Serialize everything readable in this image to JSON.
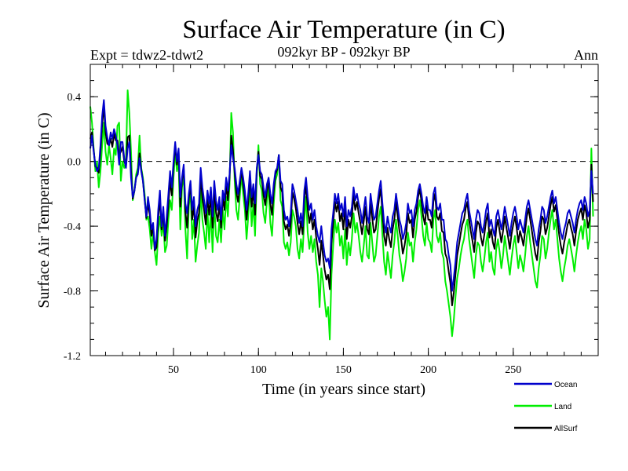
{
  "chart_data": {
    "type": "line",
    "title": "Surface Air Temperature (in C)",
    "subtitle": "092kyr BP - 092kyr BP",
    "experiment_label": "Expt = tdwz2-tdwt2",
    "season_label": "Ann",
    "xlabel": "Time (in years since start)",
    "ylabel": "Surface Air Temperature (in C)",
    "xlim": [
      1,
      300
    ],
    "ylim": [
      -1.2,
      0.6
    ],
    "x_ticks": [
      50,
      100,
      150,
      200,
      250
    ],
    "x_tick_labels": [
      "50",
      "100",
      "150",
      "200",
      "250"
    ],
    "y_ticks": [
      -1.2,
      -0.8,
      -0.4,
      0.0,
      0.4
    ],
    "y_tick_labels": [
      "-1.2",
      "-0.8",
      "-0.4",
      "0.0",
      "0.4"
    ],
    "reference_line": 0.0,
    "legend_position": "bottom-right",
    "x_start": 1,
    "x_step": 1,
    "series": [
      {
        "name": "Ocean",
        "color": "#0000cc",
        "values": [
          0.08,
          0.16,
          0.06,
          -0.02,
          -0.06,
          -0.04,
          0.1,
          0.28,
          0.38,
          0.22,
          0.15,
          0.1,
          0.18,
          0.14,
          0.2,
          0.16,
          0.1,
          -0.02,
          0.12,
          0.12,
          0.02,
          -0.04,
          0.08,
          0.12,
          -0.1,
          -0.22,
          -0.18,
          -0.1,
          -0.08,
          0.02,
          -0.06,
          -0.12,
          -0.24,
          -0.34,
          -0.22,
          -0.3,
          -0.42,
          -0.38,
          -0.54,
          -0.48,
          -0.3,
          -0.18,
          -0.4,
          -0.28,
          -0.46,
          -0.34,
          -0.2,
          -0.06,
          -0.16,
          0.0,
          0.12,
          0.0,
          0.08,
          -0.22,
          -0.1,
          -0.02,
          -0.26,
          -0.32,
          -0.2,
          -0.12,
          -0.3,
          -0.22,
          -0.4,
          -0.3,
          -0.26,
          -0.04,
          -0.16,
          -0.24,
          -0.32,
          -0.18,
          -0.26,
          -0.16,
          -0.34,
          -0.12,
          -0.24,
          -0.3,
          -0.22,
          -0.36,
          -0.18,
          -0.24,
          -0.1,
          -0.18,
          -0.08,
          0.1,
          0.02,
          -0.04,
          -0.14,
          -0.2,
          -0.12,
          -0.04,
          -0.1,
          -0.18,
          -0.3,
          -0.2,
          -0.06,
          -0.22,
          -0.14,
          -0.26,
          -0.04,
          0.04,
          -0.06,
          -0.08,
          -0.16,
          -0.22,
          -0.14,
          -0.1,
          -0.2,
          -0.26,
          -0.14,
          -0.06,
          -0.04,
          0.04,
          -0.12,
          -0.14,
          -0.3,
          -0.36,
          -0.34,
          -0.4,
          -0.32,
          -0.14,
          -0.18,
          -0.24,
          -0.3,
          -0.38,
          -0.32,
          -0.4,
          -0.18,
          -0.1,
          -0.22,
          -0.3,
          -0.26,
          -0.36,
          -0.3,
          -0.4,
          -0.46,
          -0.5,
          -0.4,
          -0.5,
          -0.58,
          -0.62,
          -0.6,
          -0.66,
          -0.42,
          -0.32,
          -0.2,
          -0.26,
          -0.2,
          -0.3,
          -0.26,
          -0.34,
          -0.22,
          -0.4,
          -0.3,
          -0.34,
          -0.28,
          -0.16,
          -0.24,
          -0.2,
          -0.26,
          -0.3,
          -0.38,
          -0.3,
          -0.22,
          -0.34,
          -0.38,
          -0.2,
          -0.28,
          -0.36,
          -0.34,
          -0.26,
          -0.18,
          -0.12,
          -0.26,
          -0.38,
          -0.44,
          -0.34,
          -0.4,
          -0.44,
          -0.34,
          -0.3,
          -0.2,
          -0.28,
          -0.36,
          -0.4,
          -0.48,
          -0.44,
          -0.38,
          -0.26,
          -0.32,
          -0.3,
          -0.4,
          -0.3,
          -0.26,
          -0.18,
          -0.14,
          -0.2,
          -0.28,
          -0.32,
          -0.22,
          -0.3,
          -0.3,
          -0.34,
          -0.2,
          -0.16,
          -0.28,
          -0.3,
          -0.26,
          -0.36,
          -0.36,
          -0.48,
          -0.5,
          -0.58,
          -0.64,
          -0.8,
          -0.72,
          -0.62,
          -0.5,
          -0.44,
          -0.38,
          -0.32,
          -0.3,
          -0.24,
          -0.2,
          -0.3,
          -0.36,
          -0.42,
          -0.48,
          -0.36,
          -0.3,
          -0.32,
          -0.4,
          -0.44,
          -0.38,
          -0.3,
          -0.26,
          -0.4,
          -0.36,
          -0.42,
          -0.46,
          -0.34,
          -0.3,
          -0.36,
          -0.42,
          -0.36,
          -0.28,
          -0.34,
          -0.4,
          -0.46,
          -0.38,
          -0.32,
          -0.28,
          -0.34,
          -0.42,
          -0.36,
          -0.4,
          -0.44,
          -0.36,
          -0.28,
          -0.24,
          -0.3,
          -0.36,
          -0.42,
          -0.48,
          -0.52,
          -0.42,
          -0.36,
          -0.28,
          -0.3,
          -0.38,
          -0.34,
          -0.28,
          -0.22,
          -0.18,
          -0.26,
          -0.22,
          -0.3,
          -0.38,
          -0.44,
          -0.48,
          -0.42,
          -0.38,
          -0.32,
          -0.3,
          -0.34,
          -0.38,
          -0.44,
          -0.36,
          -0.3,
          -0.26,
          -0.24,
          -0.3,
          -0.22,
          -0.26,
          -0.34,
          -0.3,
          -0.06,
          -0.2
        ]
      },
      {
        "name": "Land",
        "color": "#00ee00",
        "values": [
          0.34,
          0.24,
          0.08,
          -0.06,
          0.0,
          -0.16,
          -0.06,
          0.1,
          0.24,
          0.06,
          -0.02,
          0.1,
          0.02,
          -0.08,
          0.08,
          0.04,
          0.22,
          0.24,
          -0.12,
          0.0,
          -0.04,
          0.0,
          0.44,
          0.3,
          0.06,
          -0.24,
          -0.18,
          -0.08,
          -0.04,
          0.16,
          -0.04,
          -0.1,
          -0.2,
          -0.36,
          -0.34,
          -0.42,
          -0.54,
          -0.44,
          -0.56,
          -0.64,
          -0.44,
          -0.34,
          -0.46,
          -0.38,
          -0.56,
          -0.52,
          -0.36,
          -0.24,
          -0.3,
          -0.1,
          0.06,
          -0.06,
          0.0,
          -0.42,
          -0.16,
          -0.08,
          -0.42,
          -0.6,
          -0.28,
          -0.18,
          -0.48,
          -0.36,
          -0.62,
          -0.52,
          -0.44,
          -0.18,
          -0.36,
          -0.44,
          -0.54,
          -0.3,
          -0.5,
          -0.3,
          -0.56,
          -0.26,
          -0.46,
          -0.5,
          -0.36,
          -0.5,
          -0.3,
          -0.42,
          -0.22,
          -0.34,
          -0.14,
          0.3,
          0.18,
          -0.12,
          -0.3,
          -0.36,
          -0.22,
          -0.08,
          -0.2,
          -0.3,
          -0.48,
          -0.34,
          -0.14,
          -0.4,
          -0.26,
          -0.46,
          -0.1,
          0.1,
          -0.14,
          -0.18,
          -0.32,
          -0.38,
          -0.24,
          -0.16,
          -0.38,
          -0.46,
          -0.26,
          -0.12,
          -0.08,
          0.04,
          -0.24,
          -0.28,
          -0.5,
          -0.54,
          -0.5,
          -0.58,
          -0.5,
          -0.3,
          -0.34,
          -0.4,
          -0.54,
          -0.6,
          -0.48,
          -0.56,
          -0.36,
          -0.22,
          -0.44,
          -0.54,
          -0.46,
          -0.56,
          -0.48,
          -0.62,
          -0.7,
          -0.9,
          -0.66,
          -0.74,
          -0.86,
          -0.96,
          -0.9,
          -1.1,
          -0.7,
          -0.52,
          -0.36,
          -0.44,
          -0.38,
          -0.52,
          -0.46,
          -0.6,
          -0.42,
          -0.64,
          -0.5,
          -0.58,
          -0.48,
          -0.32,
          -0.44,
          -0.38,
          -0.46,
          -0.56,
          -0.62,
          -0.52,
          -0.4,
          -0.58,
          -0.6,
          -0.38,
          -0.5,
          -0.62,
          -0.58,
          -0.46,
          -0.34,
          -0.28,
          -0.46,
          -0.62,
          -0.7,
          -0.56,
          -0.64,
          -0.72,
          -0.58,
          -0.5,
          -0.36,
          -0.46,
          -0.58,
          -0.64,
          -0.74,
          -0.68,
          -0.6,
          -0.44,
          -0.52,
          -0.5,
          -0.62,
          -0.5,
          -0.42,
          -0.3,
          -0.24,
          -0.34,
          -0.46,
          -0.52,
          -0.38,
          -0.48,
          -0.5,
          -0.56,
          -0.36,
          -0.3,
          -0.46,
          -0.5,
          -0.44,
          -0.56,
          -0.6,
          -0.74,
          -0.8,
          -0.88,
          -0.96,
          -1.08,
          -0.98,
          -0.84,
          -0.72,
          -0.66,
          -0.58,
          -0.52,
          -0.48,
          -0.4,
          -0.36,
          -0.48,
          -0.56,
          -0.64,
          -0.72,
          -0.58,
          -0.5,
          -0.52,
          -0.62,
          -0.68,
          -0.6,
          -0.5,
          -0.44,
          -0.62,
          -0.56,
          -0.66,
          -0.7,
          -0.54,
          -0.48,
          -0.56,
          -0.66,
          -0.58,
          -0.46,
          -0.54,
          -0.62,
          -0.7,
          -0.6,
          -0.52,
          -0.46,
          -0.56,
          -0.66,
          -0.58,
          -0.62,
          -0.68,
          -0.58,
          -0.46,
          -0.4,
          -0.5,
          -0.58,
          -0.66,
          -0.74,
          -0.78,
          -0.66,
          -0.58,
          -0.46,
          -0.48,
          -0.6,
          -0.54,
          -0.44,
          -0.36,
          -0.3,
          -0.42,
          -0.36,
          -0.48,
          -0.6,
          -0.68,
          -0.74,
          -0.66,
          -0.6,
          -0.52,
          -0.48,
          -0.54,
          -0.6,
          -0.68,
          -0.58,
          -0.5,
          -0.44,
          -0.4,
          -0.48,
          -0.36,
          -0.42,
          -0.54,
          -0.48,
          0.08,
          -0.34
        ]
      },
      {
        "name": "AllSurf",
        "color": "#000000",
        "values": [
          0.14,
          0.18,
          0.07,
          -0.03,
          -0.04,
          -0.07,
          0.06,
          0.23,
          0.34,
          0.18,
          0.11,
          0.1,
          0.14,
          0.09,
          0.17,
          0.13,
          0.13,
          0.04,
          0.06,
          0.09,
          0.0,
          -0.03,
          0.15,
          0.16,
          -0.06,
          -0.23,
          -0.18,
          -0.1,
          -0.07,
          0.05,
          -0.05,
          -0.12,
          -0.23,
          -0.35,
          -0.26,
          -0.33,
          -0.46,
          -0.4,
          -0.55,
          -0.53,
          -0.35,
          -0.23,
          -0.42,
          -0.31,
          -0.49,
          -0.4,
          -0.26,
          -0.12,
          -0.21,
          -0.03,
          0.1,
          -0.02,
          0.06,
          -0.28,
          -0.12,
          -0.04,
          -0.31,
          -0.41,
          -0.23,
          -0.14,
          -0.36,
          -0.27,
          -0.47,
          -0.37,
          -0.32,
          -0.09,
          -0.23,
          -0.3,
          -0.39,
          -0.22,
          -0.33,
          -0.21,
          -0.41,
          -0.17,
          -0.31,
          -0.37,
          -0.27,
          -0.41,
          -0.22,
          -0.3,
          -0.14,
          -0.24,
          -0.1,
          0.16,
          0.07,
          -0.07,
          -0.19,
          -0.25,
          -0.16,
          -0.05,
          -0.14,
          -0.22,
          -0.36,
          -0.25,
          -0.09,
          -0.28,
          -0.18,
          -0.33,
          -0.06,
          0.06,
          -0.09,
          -0.11,
          -0.21,
          -0.27,
          -0.18,
          -0.12,
          -0.26,
          -0.33,
          -0.18,
          -0.08,
          -0.05,
          0.04,
          -0.16,
          -0.19,
          -0.37,
          -0.42,
          -0.39,
          -0.46,
          -0.38,
          -0.19,
          -0.23,
          -0.29,
          -0.38,
          -0.45,
          -0.37,
          -0.45,
          -0.24,
          -0.14,
          -0.29,
          -0.38,
          -0.32,
          -0.42,
          -0.36,
          -0.47,
          -0.54,
          -0.64,
          -0.49,
          -0.58,
          -0.67,
          -0.73,
          -0.7,
          -0.79,
          -0.51,
          -0.38,
          -0.25,
          -0.31,
          -0.25,
          -0.37,
          -0.32,
          -0.42,
          -0.28,
          -0.48,
          -0.36,
          -0.41,
          -0.34,
          -0.21,
          -0.3,
          -0.25,
          -0.32,
          -0.38,
          -0.45,
          -0.37,
          -0.28,
          -0.42,
          -0.45,
          -0.26,
          -0.35,
          -0.44,
          -0.42,
          -0.32,
          -0.23,
          -0.17,
          -0.32,
          -0.46,
          -0.52,
          -0.41,
          -0.48,
          -0.53,
          -0.42,
          -0.36,
          -0.25,
          -0.34,
          -0.43,
          -0.48,
          -0.57,
          -0.52,
          -0.45,
          -0.32,
          -0.38,
          -0.36,
          -0.47,
          -0.36,
          -0.31,
          -0.22,
          -0.17,
          -0.25,
          -0.34,
          -0.39,
          -0.27,
          -0.36,
          -0.36,
          -0.41,
          -0.25,
          -0.2,
          -0.34,
          -0.36,
          -0.32,
          -0.43,
          -0.44,
          -0.57,
          -0.6,
          -0.68,
          -0.75,
          -0.89,
          -0.81,
          -0.7,
          -0.58,
          -0.52,
          -0.45,
          -0.39,
          -0.36,
          -0.29,
          -0.25,
          -0.36,
          -0.43,
          -0.49,
          -0.56,
          -0.44,
          -0.37,
          -0.39,
          -0.47,
          -0.52,
          -0.45,
          -0.37,
          -0.32,
          -0.47,
          -0.42,
          -0.5,
          -0.54,
          -0.41,
          -0.36,
          -0.43,
          -0.5,
          -0.43,
          -0.34,
          -0.41,
          -0.47,
          -0.54,
          -0.45,
          -0.39,
          -0.34,
          -0.41,
          -0.5,
          -0.43,
          -0.47,
          -0.52,
          -0.43,
          -0.34,
          -0.29,
          -0.36,
          -0.43,
          -0.5,
          -0.57,
          -0.61,
          -0.5,
          -0.43,
          -0.34,
          -0.36,
          -0.45,
          -0.41,
          -0.34,
          -0.27,
          -0.22,
          -0.31,
          -0.27,
          -0.36,
          -0.45,
          -0.52,
          -0.57,
          -0.5,
          -0.45,
          -0.39,
          -0.36,
          -0.41,
          -0.45,
          -0.52,
          -0.43,
          -0.36,
          -0.32,
          -0.29,
          -0.36,
          -0.27,
          -0.32,
          -0.41,
          -0.36,
          -0.02,
          -0.25
        ]
      }
    ]
  }
}
